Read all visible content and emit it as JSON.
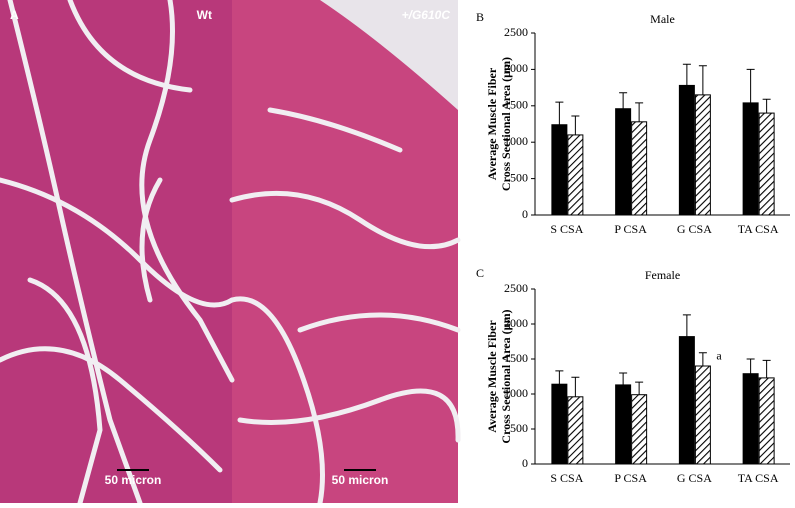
{
  "micrographs": {
    "panel_label": "A",
    "left": {
      "label": "Wt",
      "scale_bar": "50 micron"
    },
    "right": {
      "label": "+/G610C",
      "scale_bar": "50 micron"
    }
  },
  "chart_data": [
    {
      "type": "bar",
      "panel_label": "B",
      "title": "Male",
      "y_label": [
        "Average Muscle Fiber",
        "Cross Sectional Area (µm)"
      ],
      "categories": [
        "S CSA",
        "P CSA",
        "G CSA",
        "TA CSA"
      ],
      "series": [
        {
          "color": "#000000",
          "values": [
            1240,
            1460,
            1780,
            1540
          ],
          "errors": [
            310,
            220,
            290,
            460
          ]
        },
        {
          "color": "#000000",
          "pattern": "hatch",
          "values": [
            1100,
            1280,
            1650,
            1400
          ],
          "errors": [
            260,
            260,
            400,
            190
          ]
        }
      ],
      "ylim": [
        0,
        2500
      ],
      "yticks": [
        0,
        500,
        1000,
        1500,
        2000,
        2500
      ],
      "grid": false
    },
    {
      "type": "bar",
      "panel_label": "C",
      "title": "Female",
      "y_label": [
        "Average Muscle Fiber",
        "Cross Sectional Area (µm)"
      ],
      "categories": [
        "S CSA",
        "P CSA",
        "G CSA",
        "TA CSA"
      ],
      "series": [
        {
          "color": "#000000",
          "values": [
            1140,
            1130,
            1820,
            1290
          ],
          "errors": [
            190,
            170,
            310,
            210
          ]
        },
        {
          "color": "#000000",
          "pattern": "hatch",
          "values": [
            960,
            990,
            1400,
            1230
          ],
          "errors": [
            280,
            180,
            190,
            250
          ]
        }
      ],
      "annotation": {
        "text": "a",
        "category": "G CSA"
      },
      "ylim": [
        0,
        2500
      ],
      "yticks": [
        0,
        500,
        1000,
        1500,
        2000,
        2500
      ],
      "grid": false
    }
  ]
}
